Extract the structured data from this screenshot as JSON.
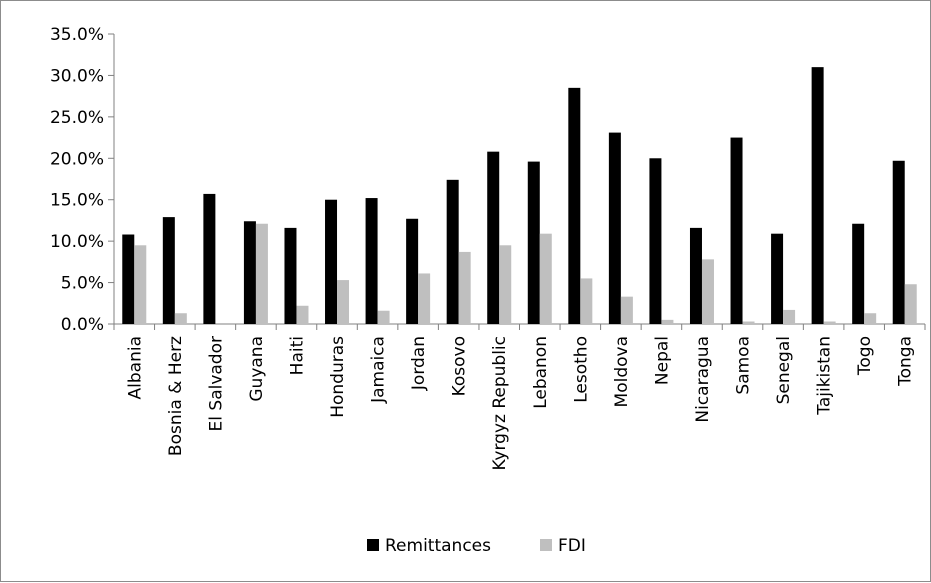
{
  "chart_data": {
    "type": "bar",
    "categories": [
      "Albania",
      "Bosnia & Herz",
      "El Salvador",
      "Guyana",
      "Haiti",
      "Honduras",
      "Jamaica",
      "Jordan",
      "Kosovo",
      "Kyrgyz Republic",
      "Lebanon",
      "Lesotho",
      "Moldova",
      "Nepal",
      "Nicaragua",
      "Samoa",
      "Senegal",
      "Tajikistan",
      "Togo",
      "Tonga"
    ],
    "series": [
      {
        "name": "Remittances",
        "color": "#000000",
        "values": [
          10.8,
          12.9,
          15.7,
          12.4,
          11.6,
          15.0,
          15.2,
          12.7,
          17.4,
          20.8,
          19.6,
          28.5,
          23.1,
          20.0,
          11.6,
          22.5,
          10.9,
          31.0,
          12.1,
          19.7
        ]
      },
      {
        "name": "FDI",
        "color": "#bfbfbf",
        "values": [
          9.5,
          1.3,
          0.0,
          12.1,
          2.2,
          5.3,
          1.6,
          6.1,
          8.7,
          9.5,
          10.9,
          5.5,
          3.3,
          0.5,
          7.8,
          0.3,
          1.7,
          0.3,
          1.3,
          4.8
        ]
      }
    ],
    "ylim": [
      0,
      35
    ],
    "yticks": [
      "0.0%",
      "5.0%",
      "10.0%",
      "15.0%",
      "20.0%",
      "25.0%",
      "30.0%",
      "35.0%"
    ],
    "ytick_values": [
      0,
      5,
      10,
      15,
      20,
      25,
      30,
      35
    ],
    "grid": false,
    "legend": "bottom-center",
    "title": "",
    "xlabel": "",
    "ylabel": ""
  }
}
